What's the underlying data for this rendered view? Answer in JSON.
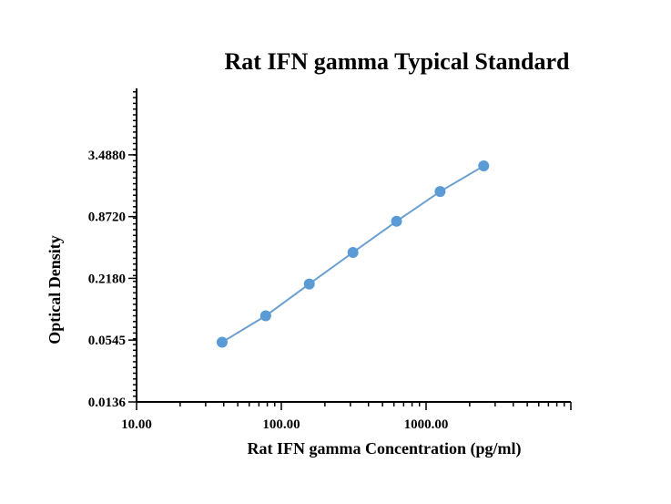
{
  "chart_data": {
    "type": "line",
    "title": "Rat IFN gamma Typical Standard",
    "xlabel": "Rat IFN gamma Concentration (pg/ml)",
    "ylabel": "Optical Density",
    "x_scale": "log",
    "y_scale": "log",
    "xlim": [
      10,
      10000
    ],
    "ylim": [
      0.0136,
      15.5
    ],
    "x_ticks": [
      10,
      100,
      1000
    ],
    "x_tick_labels": [
      "10.00",
      "100.00",
      "1000.00"
    ],
    "y_ticks": [
      0.0136,
      0.0545,
      0.218,
      0.872,
      3.488
    ],
    "y_tick_labels": [
      "0.0136",
      "0.0545",
      "0.2180",
      "0.8720",
      "3.4880"
    ],
    "grid": false,
    "colors": {
      "series": "#5b9bd5",
      "line": "#6a9fd0"
    },
    "series": [
      {
        "x": [
          39,
          78,
          156,
          312.5,
          625,
          1250,
          2500
        ],
        "y": [
          0.052,
          0.094,
          0.192,
          0.39,
          0.785,
          1.53,
          2.72
        ]
      }
    ]
  }
}
